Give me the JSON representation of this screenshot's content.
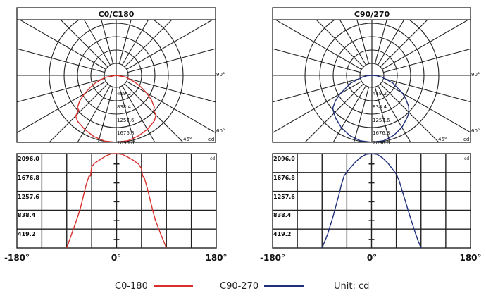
{
  "legend": {
    "series_a_label": "C0-180",
    "series_b_label": "C90-270",
    "unit_label": "Unit: cd",
    "series_a_color": "#d9302c",
    "series_b_color": "#1f2f7a"
  },
  "panels": [
    {
      "title": "C0/C180",
      "color": "#d9302c",
      "polar_labels": [
        "419.2",
        "838.4",
        "1257.6",
        "1676.8",
        "2096.0"
      ],
      "angle_labels": {
        "a90": "90°",
        "a60": "60°",
        "a45": "45°",
        "unit": "cd"
      },
      "cart_y_labels": [
        "2096.0",
        "1676.8",
        "1257.6",
        "838.4",
        "419.2"
      ],
      "cart_x_labels": {
        "left": "-180°",
        "center": "0°",
        "right": "180°"
      },
      "cart_unit": "cd"
    },
    {
      "title": "C90/270",
      "color": "#1f2f7a",
      "polar_labels": [
        "419.2",
        "838.4",
        "1257.6",
        "1676.8",
        "2096.0"
      ],
      "angle_labels": {
        "a90": "90°",
        "a60": "60°",
        "a45": "45°",
        "unit": "cd"
      },
      "cart_y_labels": [
        "2096.0",
        "1676.8",
        "1257.6",
        "838.4",
        "419.2"
      ],
      "cart_x_labels": {
        "left": "-180°",
        "center": "0°",
        "right": "180°"
      },
      "cart_unit": "cd"
    }
  ],
  "chart_data": [
    {
      "type": "line",
      "title": "C0/C180",
      "subtype": "polar luminous intensity distribution",
      "radial_ticks": [
        419.2,
        838.4,
        1257.6,
        1676.8,
        2096.0
      ],
      "angle_labels": [
        "90°",
        "60°",
        "45°"
      ],
      "unit": "cd",
      "series": [
        {
          "name": "C0-180",
          "color": "#d9302c",
          "x": [
            -90,
            -80,
            -70,
            -65,
            -60,
            -55,
            -50,
            -47,
            -45,
            -40,
            -30,
            -20,
            -10,
            0,
            10,
            20,
            30,
            40,
            45,
            47,
            50,
            55,
            60,
            65,
            70,
            80,
            90
          ],
          "values": [
            0,
            350,
            700,
            900,
            1150,
            1400,
            1590,
            1600,
            1800,
            1880,
            1960,
            2040,
            2090,
            2096,
            2080,
            2020,
            1950,
            1860,
            1760,
            1600,
            1560,
            1350,
            1100,
            850,
            620,
            300,
            0
          ]
        }
      ]
    },
    {
      "type": "line",
      "title": "C90/270",
      "subtype": "polar luminous intensity distribution",
      "radial_ticks": [
        419.2,
        838.4,
        1257.6,
        1676.8,
        2096.0
      ],
      "angle_labels": [
        "90°",
        "60°",
        "45°"
      ],
      "unit": "cd",
      "series": [
        {
          "name": "C90-270",
          "color": "#1f2f7a",
          "x": [
            -90,
            -85,
            -80,
            -70,
            -60,
            -55,
            -50,
            -45,
            -40,
            -30,
            -20,
            -10,
            0,
            10,
            20,
            30,
            40,
            45,
            50,
            55,
            60,
            70,
            80,
            85,
            90
          ],
          "values": [
            0,
            150,
            300,
            700,
            1150,
            1400,
            1600,
            1680,
            1760,
            1900,
            2010,
            2080,
            2096,
            2080,
            2000,
            1880,
            1720,
            1640,
            1500,
            1300,
            1100,
            700,
            320,
            150,
            0
          ]
        }
      ]
    },
    {
      "type": "line",
      "title": "Cartesian intensity distribution",
      "xlabel": "",
      "ylabel": "cd",
      "x_ticks": [
        "-180°",
        "0°",
        "180°"
      ],
      "xlim": [
        -180,
        180
      ],
      "ylim": [
        0,
        2096.0
      ],
      "y_ticks": [
        419.2,
        838.4,
        1257.6,
        1676.8,
        2096.0
      ],
      "grid": true,
      "series": [
        {
          "name": "C0-180",
          "color": "#d9302c",
          "x": [
            -90,
            -80,
            -70,
            -65,
            -60,
            -55,
            -50,
            -47,
            -45,
            -40,
            -30,
            -20,
            -10,
            0,
            10,
            20,
            30,
            40,
            45,
            47,
            50,
            55,
            60,
            65,
            70,
            80,
            90
          ],
          "values": [
            0,
            350,
            700,
            900,
            1150,
            1400,
            1590,
            1600,
            1800,
            1880,
            1960,
            2040,
            2090,
            2096,
            2080,
            2020,
            1950,
            1860,
            1760,
            1600,
            1560,
            1350,
            1100,
            850,
            620,
            300,
            0
          ]
        },
        {
          "name": "C90-270",
          "color": "#1f2f7a",
          "x": [
            -90,
            -85,
            -80,
            -70,
            -60,
            -55,
            -50,
            -45,
            -40,
            -30,
            -20,
            -10,
            0,
            10,
            20,
            30,
            40,
            45,
            50,
            55,
            60,
            70,
            80,
            85,
            90
          ],
          "values": [
            0,
            150,
            300,
            700,
            1150,
            1400,
            1600,
            1680,
            1760,
            1900,
            2010,
            2080,
            2096,
            2080,
            2000,
            1880,
            1720,
            1640,
            1500,
            1300,
            1100,
            700,
            320,
            150,
            0
          ]
        }
      ]
    }
  ]
}
